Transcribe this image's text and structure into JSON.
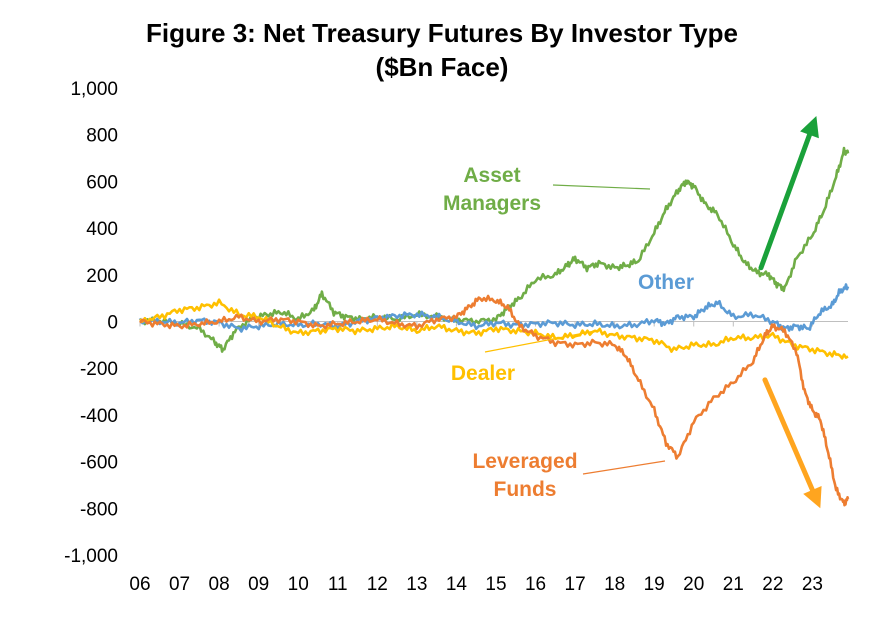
{
  "chart_data": {
    "type": "line",
    "title": [
      "Figure 3: Net Treasury Futures By Investor Type",
      "($Bn Face)"
    ],
    "xlabel": "",
    "ylabel": "",
    "ylim": [
      -1000,
      1000
    ],
    "yticks": [
      "1,000",
      "800",
      "600",
      "400",
      "200",
      "0",
      "-200",
      "-400",
      "-600",
      "-800",
      "-1,000"
    ],
    "ytick_values": [
      1000,
      800,
      600,
      400,
      200,
      0,
      -200,
      -400,
      -600,
      -800,
      -1000
    ],
    "xlim": [
      2006.0,
      2023.9
    ],
    "xticks": [
      "06",
      "07",
      "08",
      "09",
      "10",
      "11",
      "12",
      "13",
      "14",
      "15",
      "16",
      "17",
      "18",
      "19",
      "20",
      "21",
      "22",
      "23"
    ],
    "xtick_values": [
      2006,
      2007,
      2008,
      2009,
      2010,
      2011,
      2012,
      2013,
      2014,
      2015,
      2016,
      2017,
      2018,
      2019,
      2020,
      2021,
      2022,
      2023
    ],
    "series": [
      {
        "name": "Asset Managers",
        "color": "#70ad47",
        "label_lines": [
          "Asset",
          "Managers"
        ],
        "x": [
          2006.0,
          2006.5,
          2007.0,
          2007.5,
          2007.9,
          2008.1,
          2008.4,
          2008.8,
          2009.2,
          2009.6,
          2010.0,
          2010.4,
          2010.6,
          2010.9,
          2011.2,
          2011.6,
          2012.0,
          2012.5,
          2013.0,
          2013.5,
          2014.0,
          2014.5,
          2015.0,
          2015.3,
          2015.6,
          2016.0,
          2016.5,
          2016.8,
          2017.0,
          2017.3,
          2017.6,
          2018.0,
          2018.3,
          2018.6,
          2019.0,
          2019.3,
          2019.6,
          2019.8,
          2020.0,
          2020.3,
          2020.6,
          2021.0,
          2021.3,
          2021.6,
          2021.9,
          2022.1,
          2022.3,
          2022.6,
          2023.0,
          2023.3,
          2023.6,
          2023.8,
          2023.9
        ],
        "values": [
          0,
          5,
          -10,
          -30,
          -90,
          -120,
          -40,
          10,
          30,
          40,
          10,
          50,
          120,
          40,
          20,
          10,
          20,
          10,
          30,
          20,
          10,
          0,
          10,
          60,
          100,
          180,
          200,
          240,
          270,
          230,
          250,
          230,
          240,
          260,
          380,
          480,
          560,
          600,
          580,
          500,
          460,
          330,
          250,
          210,
          200,
          160,
          140,
          270,
          370,
          480,
          620,
          730,
          720
        ]
      },
      {
        "name": "Other",
        "color": "#5b9bd5",
        "label_lines": [
          "Other"
        ],
        "x": [
          2006.0,
          2006.5,
          2007.0,
          2007.5,
          2008.0,
          2008.5,
          2009.0,
          2009.5,
          2010.0,
          2010.5,
          2011.0,
          2011.5,
          2012.0,
          2012.5,
          2013.0,
          2013.5,
          2014.0,
          2014.5,
          2015.0,
          2015.5,
          2016.0,
          2016.5,
          2017.0,
          2017.5,
          2018.0,
          2018.5,
          2019.0,
          2019.3,
          2019.6,
          2020.0,
          2020.3,
          2020.6,
          2021.0,
          2021.5,
          2022.0,
          2022.3,
          2022.6,
          2022.9,
          2023.2,
          2023.5,
          2023.7,
          2023.9
        ],
        "values": [
          0,
          0,
          -5,
          5,
          -5,
          -30,
          -20,
          -10,
          -15,
          -10,
          -20,
          0,
          15,
          25,
          30,
          20,
          0,
          -20,
          -5,
          -15,
          -10,
          -5,
          -15,
          -10,
          -20,
          -15,
          5,
          -10,
          20,
          20,
          60,
          80,
          20,
          30,
          0,
          -30,
          -20,
          -30,
          40,
          70,
          130,
          150
        ]
      },
      {
        "name": "Dealer",
        "color": "#ffc000",
        "label_lines": [
          "Dealer"
        ],
        "x": [
          2006.0,
          2006.5,
          2007.0,
          2007.5,
          2008.0,
          2008.5,
          2009.0,
          2009.5,
          2010.0,
          2010.5,
          2011.0,
          2011.5,
          2012.0,
          2012.5,
          2013.0,
          2013.5,
          2014.0,
          2014.5,
          2015.0,
          2015.5,
          2016.0,
          2016.5,
          2017.0,
          2017.5,
          2018.0,
          2018.5,
          2019.0,
          2019.5,
          2020.0,
          2020.5,
          2021.0,
          2021.5,
          2022.0,
          2022.5,
          2023.0,
          2023.5,
          2023.9
        ],
        "values": [
          0,
          20,
          50,
          60,
          80,
          30,
          20,
          -20,
          -50,
          -40,
          -30,
          -40,
          -30,
          -20,
          -40,
          -20,
          -40,
          -50,
          -30,
          -40,
          -50,
          -70,
          -60,
          -40,
          -60,
          -70,
          -80,
          -120,
          -100,
          -100,
          -70,
          -70,
          -60,
          -100,
          -120,
          -140,
          -150
        ]
      },
      {
        "name": "Leveraged Funds",
        "color": "#ed7d31",
        "label_lines": [
          "Leveraged",
          "Funds"
        ],
        "x": [
          2006.0,
          2006.5,
          2007.0,
          2007.5,
          2008.0,
          2008.5,
          2009.0,
          2009.5,
          2010.0,
          2010.5,
          2011.0,
          2011.5,
          2012.0,
          2012.5,
          2013.0,
          2013.5,
          2014.0,
          2014.3,
          2014.6,
          2015.0,
          2015.3,
          2015.6,
          2016.0,
          2016.5,
          2017.0,
          2017.5,
          2018.0,
          2018.3,
          2018.6,
          2019.0,
          2019.3,
          2019.6,
          2020.0,
          2020.5,
          2021.0,
          2021.5,
          2021.8,
          2022.0,
          2022.3,
          2022.6,
          2022.8,
          2023.0,
          2023.2,
          2023.4,
          2023.6,
          2023.8,
          2023.9
        ],
        "values": [
          0,
          -10,
          -20,
          -10,
          0,
          20,
          0,
          10,
          0,
          -20,
          -10,
          0,
          10,
          -10,
          -20,
          10,
          20,
          60,
          100,
          90,
          60,
          -20,
          -60,
          -90,
          -100,
          -90,
          -100,
          -150,
          -250,
          -380,
          -520,
          -580,
          -430,
          -330,
          -260,
          -170,
          -60,
          -20,
          -40,
          -130,
          -300,
          -380,
          -420,
          -560,
          -720,
          -780,
          -760
        ]
      }
    ],
    "annotations": [
      {
        "type": "arrow",
        "color": "#1aa13a",
        "from": [
          2021.7,
          230
        ],
        "to": [
          2023.1,
          880
        ]
      },
      {
        "type": "arrow",
        "color": "#ffa51f",
        "from": [
          2021.8,
          -250
        ],
        "to": [
          2023.2,
          -800
        ]
      }
    ]
  }
}
